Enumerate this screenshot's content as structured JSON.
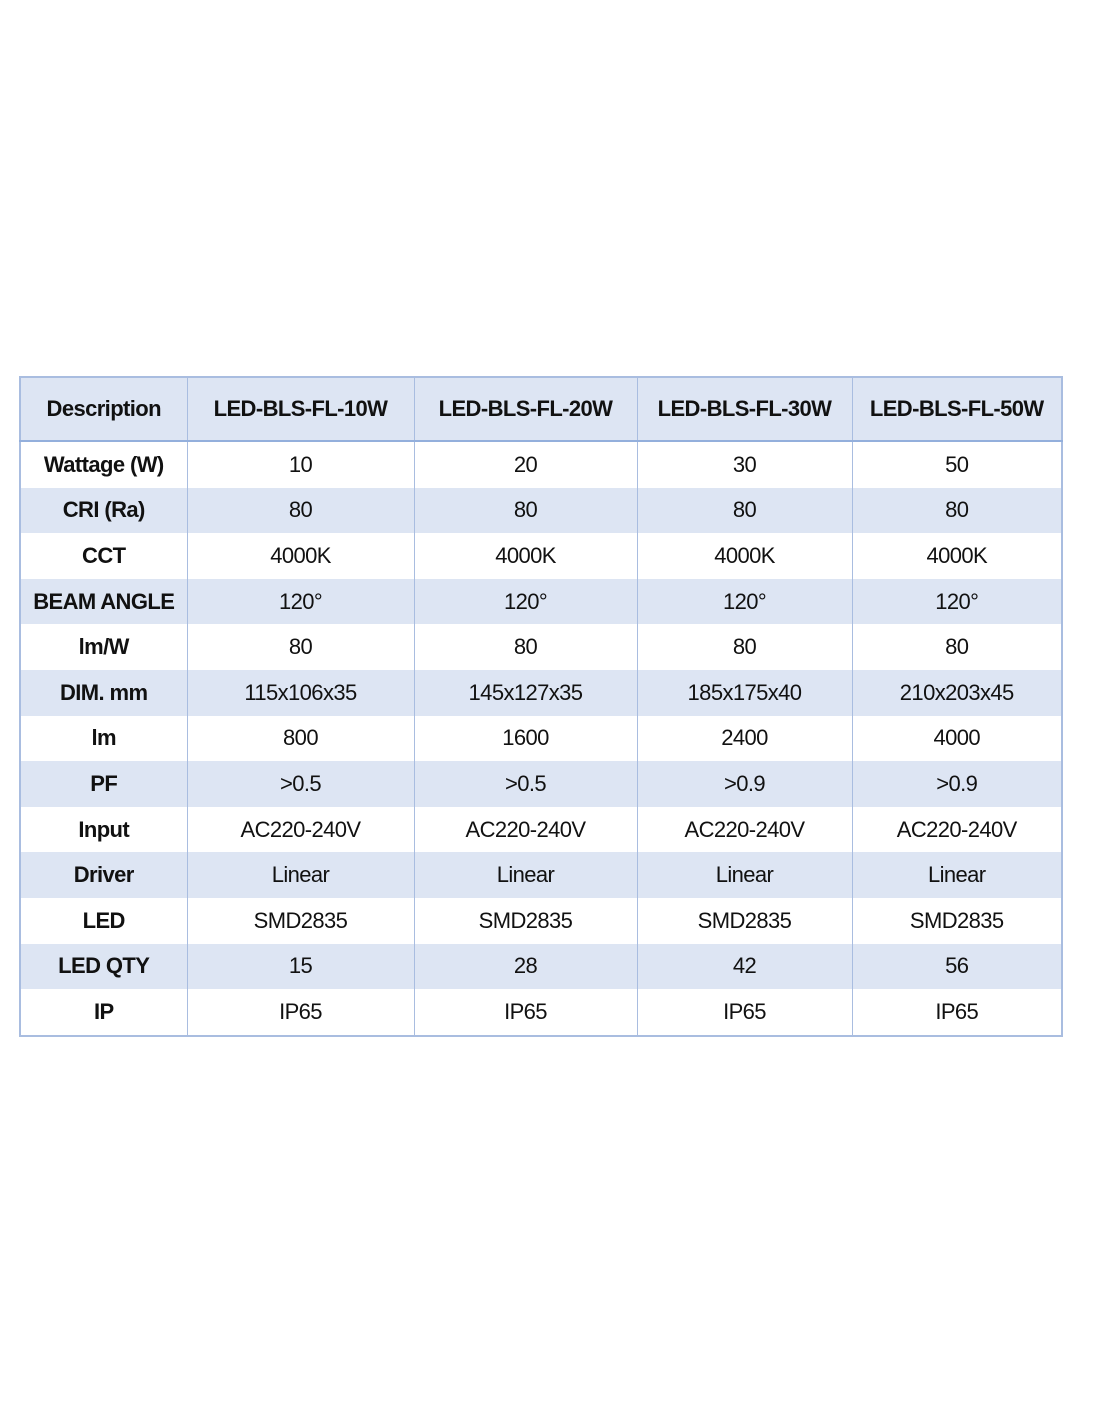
{
  "table": {
    "header": [
      "Description",
      "LED-BLS-FL-10W",
      "LED-BLS-FL-20W",
      "LED-BLS-FL-30W",
      "LED-BLS-FL-50W"
    ],
    "rows": [
      [
        "Wattage (W)",
        "10",
        "20",
        "30",
        "50"
      ],
      [
        "CRI (Ra)",
        "80",
        "80",
        "80",
        "80"
      ],
      [
        "CCT",
        "4000K",
        "4000K",
        "4000K",
        "4000K"
      ],
      [
        "BEAM ANGLE",
        "120°",
        "120°",
        "120°",
        "120°"
      ],
      [
        "lm/W",
        "80",
        "80",
        "80",
        "80"
      ],
      [
        "DIM. mm",
        "115x106x35",
        "145x127x35",
        "185x175x40",
        "210x203x45"
      ],
      [
        "lm",
        "800",
        "1600",
        "2400",
        "4000"
      ],
      [
        "PF",
        ">0.5",
        ">0.5",
        ">0.9",
        ">0.9"
      ],
      [
        "Input",
        "AC220-240V",
        "AC220-240V",
        "AC220-240V",
        "AC220-240V"
      ],
      [
        "Driver",
        "Linear",
        "Linear",
        "Linear",
        "Linear"
      ],
      [
        "LED",
        "SMD2835",
        "SMD2835",
        "SMD2835",
        "SMD2835"
      ],
      [
        "LED QTY",
        "15",
        "28",
        "42",
        "56"
      ],
      [
        "IP",
        "IP65",
        "IP65",
        "IP65",
        "IP65"
      ]
    ]
  }
}
